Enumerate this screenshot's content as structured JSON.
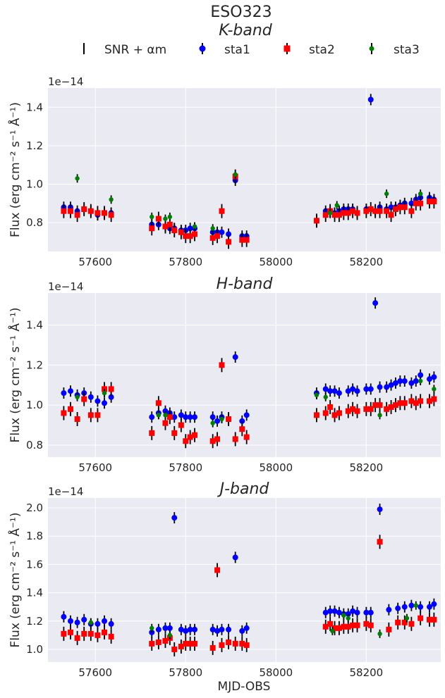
{
  "figure": {
    "title_line1": "ESO323",
    "title_line2": "K-band",
    "xlabel": "MJD-OBS",
    "ylabel": "Flux (erg cm⁻² s⁻¹ Å⁻¹)",
    "offset_label": "1e−14",
    "legend": [
      "SNR + αm",
      "sta1",
      "sta2",
      "sta3"
    ],
    "colors": {
      "SNR": "#000000",
      "sta1": "#0000ff",
      "sta2": "#ff0000",
      "sta3": "#008000",
      "bg": "#eaeaf2",
      "grid": "#ffffff"
    }
  },
  "chart_data": [
    {
      "type": "scatter",
      "band": "K",
      "title": "",
      "xlabel": "",
      "ylabel": "Flux (erg cm⁻² s⁻¹ Å⁻¹)",
      "y_scale_note": "1e−14",
      "xlim": [
        57495,
        58365
      ],
      "ylim": [
        0.65,
        1.5
      ],
      "xticks": [
        57600,
        57800,
        58000,
        58200
      ],
      "yticks": [
        0.8,
        1.0,
        1.2,
        1.4
      ],
      "grid": true,
      "series": [
        {
          "name": "sta1",
          "marker": "circle",
          "x": [
            57530,
            57545,
            57560,
            57575,
            57590,
            57605,
            57620,
            57635,
            57725,
            57740,
            57755,
            57765,
            57775,
            57790,
            57800,
            57810,
            57820,
            57860,
            57870,
            57880,
            57895,
            57910,
            57925,
            57935,
            58090,
            58110,
            58120,
            58130,
            58140,
            58150,
            58160,
            58170,
            58180,
            58200,
            58210,
            58220,
            58230,
            58245,
            58255,
            58265,
            58275,
            58285,
            58300,
            58310,
            58320,
            58340,
            58350
          ],
          "y": [
            0.88,
            0.88,
            0.86,
            0.87,
            0.86,
            0.84,
            0.85,
            0.85,
            0.79,
            0.79,
            0.78,
            0.77,
            0.77,
            0.76,
            0.76,
            0.77,
            0.77,
            0.75,
            0.75,
            0.75,
            0.74,
            1.02,
            0.73,
            0.73,
            0.81,
            0.86,
            0.86,
            0.85,
            0.86,
            0.87,
            0.87,
            0.87,
            0.85,
            0.87,
            1.44,
            0.86,
            0.88,
            0.87,
            0.88,
            0.88,
            0.89,
            0.9,
            0.9,
            0.92,
            0.93,
            0.93,
            0.92
          ]
        },
        {
          "name": "sta2",
          "marker": "square",
          "x": [
            57530,
            57545,
            57560,
            57575,
            57590,
            57605,
            57620,
            57635,
            57725,
            57740,
            57755,
            57765,
            57775,
            57790,
            57800,
            57810,
            57820,
            57860,
            57870,
            57880,
            57895,
            57910,
            57925,
            57935,
            58090,
            58110,
            58120,
            58130,
            58140,
            58150,
            58160,
            58170,
            58180,
            58200,
            58210,
            58220,
            58230,
            58245,
            58255,
            58265,
            58275,
            58285,
            58300,
            58310,
            58320,
            58340,
            58350
          ],
          "y": [
            0.86,
            0.86,
            0.84,
            0.87,
            0.86,
            0.85,
            0.85,
            0.84,
            0.77,
            0.82,
            0.78,
            0.79,
            0.76,
            0.75,
            0.73,
            0.73,
            0.74,
            0.72,
            0.73,
            0.86,
            0.7,
            1.04,
            0.71,
            0.71,
            0.81,
            0.84,
            0.86,
            0.84,
            0.84,
            0.85,
            0.85,
            0.86,
            0.85,
            0.86,
            0.87,
            0.86,
            0.86,
            0.86,
            0.84,
            0.87,
            0.88,
            0.88,
            0.86,
            0.9,
            0.9,
            0.91,
            0.91
          ]
        },
        {
          "name": "sta3",
          "marker": "circle",
          "x": [
            57560,
            57635,
            57725,
            57755,
            57765,
            57820,
            57860,
            57910,
            58120,
            58135,
            58245,
            58320
          ],
          "y": [
            1.03,
            0.92,
            0.83,
            0.82,
            0.83,
            0.78,
            0.77,
            1.05,
            0.85,
            0.89,
            0.95,
            0.95
          ]
        }
      ]
    },
    {
      "type": "scatter",
      "band": "H",
      "title": "H-band",
      "xlabel": "",
      "ylabel": "Flux (erg cm⁻² s⁻¹ Å⁻¹)",
      "y_scale_note": "1e−14",
      "xlim": [
        57495,
        58365
      ],
      "ylim": [
        0.74,
        1.56
      ],
      "xticks": [
        57600,
        57800,
        58000,
        58200
      ],
      "yticks": [
        0.8,
        1.0,
        1.2,
        1.4
      ],
      "grid": true,
      "series": [
        {
          "name": "sta1",
          "marker": "circle",
          "x": [
            57530,
            57545,
            57560,
            57575,
            57590,
            57605,
            57620,
            57635,
            57725,
            57740,
            57755,
            57765,
            57775,
            57790,
            57800,
            57810,
            57820,
            57860,
            57870,
            57880,
            57895,
            57910,
            57925,
            57935,
            58090,
            58110,
            58120,
            58130,
            58140,
            58160,
            58170,
            58180,
            58200,
            58210,
            58220,
            58230,
            58245,
            58255,
            58265,
            58275,
            58285,
            58300,
            58310,
            58320,
            58340,
            58350
          ],
          "y": [
            1.06,
            1.07,
            1.05,
            1.06,
            1.04,
            1.02,
            1.01,
            1.04,
            0.94,
            0.96,
            0.97,
            0.96,
            0.94,
            0.95,
            0.94,
            0.94,
            0.94,
            0.94,
            0.92,
            0.94,
            0.93,
            1.24,
            0.92,
            0.95,
            1.06,
            1.08,
            1.07,
            1.07,
            1.06,
            1.07,
            1.08,
            1.07,
            1.08,
            1.08,
            1.51,
            1.09,
            1.09,
            1.1,
            1.11,
            1.12,
            1.12,
            1.11,
            1.12,
            1.15,
            1.13,
            1.14
          ]
        },
        {
          "name": "sta2",
          "marker": "square",
          "x": [
            57530,
            57545,
            57560,
            57575,
            57590,
            57605,
            57620,
            57635,
            57725,
            57740,
            57755,
            57765,
            57775,
            57790,
            57800,
            57810,
            57820,
            57860,
            57870,
            57880,
            57895,
            57910,
            57925,
            57935,
            58090,
            58110,
            58120,
            58130,
            58140,
            58160,
            58170,
            58180,
            58200,
            58210,
            58220,
            58230,
            58245,
            58255,
            58265,
            58275,
            58285,
            58300,
            58310,
            58320,
            58340,
            58350
          ],
          "y": [
            0.96,
            0.98,
            0.93,
            1.03,
            0.95,
            0.95,
            1.08,
            1.08,
            0.86,
            1.01,
            0.91,
            0.94,
            0.86,
            0.9,
            0.82,
            0.84,
            0.85,
            0.82,
            0.83,
            1.2,
            0.93,
            0.83,
            0.88,
            0.84,
            0.95,
            0.96,
            0.99,
            0.95,
            0.96,
            0.97,
            0.98,
            0.97,
            0.98,
            0.98,
            1.0,
            1.0,
            0.98,
            0.99,
            1.0,
            1.01,
            1.01,
            1.02,
            1.01,
            1.02,
            1.02,
            1.03
          ]
        },
        {
          "name": "sta3",
          "marker": "circle",
          "x": [
            57560,
            57620,
            57740,
            57755,
            57860,
            57880,
            58090,
            58110,
            58230,
            58320,
            58350
          ],
          "y": [
            1.04,
            1.06,
            0.95,
            0.95,
            0.91,
            0.93,
            1.05,
            1.04,
            0.95,
            1.12,
            1.08
          ]
        }
      ]
    },
    {
      "type": "scatter",
      "band": "J",
      "title": "J-band",
      "xlabel": "MJD-OBS",
      "ylabel": "Flux (erg cm⁻² s⁻¹ Å⁻¹)",
      "y_scale_note": "1e−14",
      "xlim": [
        57495,
        58365
      ],
      "ylim": [
        0.91,
        2.07
      ],
      "xticks": [
        57600,
        57800,
        58000,
        58200
      ],
      "yticks": [
        1.0,
        1.2,
        1.4,
        1.6,
        1.8,
        2.0
      ],
      "grid": true,
      "series": [
        {
          "name": "sta1",
          "marker": "circle",
          "x": [
            57530,
            57545,
            57560,
            57575,
            57590,
            57605,
            57620,
            57635,
            57725,
            57740,
            57755,
            57765,
            57775,
            57790,
            57800,
            57810,
            57820,
            57860,
            57870,
            57880,
            57895,
            57910,
            57925,
            57935,
            58110,
            58120,
            58130,
            58140,
            58150,
            58160,
            58170,
            58180,
            58200,
            58210,
            58230,
            58250,
            58270,
            58285,
            58300,
            58320,
            58340,
            58350
          ],
          "y": [
            1.23,
            1.2,
            1.19,
            1.21,
            1.18,
            1.18,
            1.2,
            1.18,
            1.12,
            1.14,
            1.15,
            1.15,
            1.93,
            1.14,
            1.13,
            1.14,
            1.14,
            1.14,
            1.13,
            1.14,
            1.14,
            1.65,
            1.13,
            1.15,
            1.26,
            1.27,
            1.27,
            1.26,
            1.25,
            1.25,
            1.27,
            1.26,
            1.26,
            1.26,
            1.99,
            1.28,
            1.29,
            1.3,
            1.31,
            1.3,
            1.3,
            1.32
          ]
        },
        {
          "name": "sta2",
          "marker": "square",
          "x": [
            57530,
            57545,
            57560,
            57575,
            57590,
            57605,
            57620,
            57635,
            57725,
            57740,
            57755,
            57765,
            57775,
            57790,
            57800,
            57810,
            57820,
            57860,
            57870,
            57880,
            57895,
            57910,
            57925,
            57935,
            58110,
            58120,
            58130,
            58140,
            58150,
            58160,
            58170,
            58180,
            58200,
            58210,
            58230,
            58250,
            58270,
            58285,
            58300,
            58320,
            58340,
            58350
          ],
          "y": [
            1.11,
            1.12,
            1.08,
            1.11,
            1.11,
            1.1,
            1.12,
            1.09,
            1.04,
            1.05,
            1.06,
            1.08,
            1.0,
            1.02,
            1.04,
            1.04,
            1.04,
            1.01,
            1.56,
            1.03,
            1.05,
            1.04,
            1.04,
            1.03,
            1.16,
            1.18,
            1.15,
            1.15,
            1.16,
            1.16,
            1.17,
            1.17,
            1.18,
            1.17,
            1.76,
            1.14,
            1.19,
            1.19,
            1.18,
            1.22,
            1.21,
            1.21
          ]
        },
        {
          "name": "sta3",
          "marker": "circle",
          "x": [
            57590,
            57725,
            57765,
            58125,
            58150,
            58160,
            58230,
            58290,
            58310
          ],
          "y": [
            1.19,
            1.15,
            1.1,
            1.13,
            1.24,
            1.22,
            1.11,
            1.22,
            1.31
          ]
        }
      ]
    }
  ]
}
